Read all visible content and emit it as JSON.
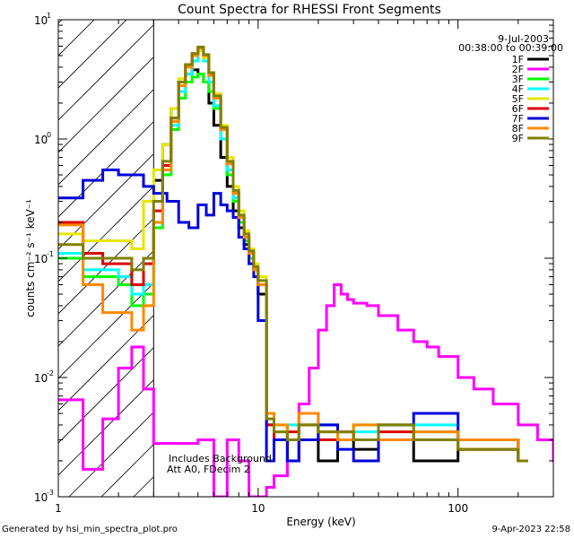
{
  "chart_data": {
    "type": "line",
    "title": "Count Spectra for RHESSI Front Segments",
    "xlabel": "Energy (keV)",
    "ylabel": "counts cm⁻² s⁻¹ keV⁻¹",
    "xscale": "log",
    "yscale": "log",
    "xlim": [
      1,
      300
    ],
    "ylim": [
      0.001,
      10
    ],
    "xticks": [
      {
        "v": 1,
        "label": "1"
      },
      {
        "v": 10,
        "label": "10"
      },
      {
        "v": 100,
        "label": "100"
      }
    ],
    "yticks": [
      {
        "v": 0.001,
        "label": "10",
        "exp": "-3"
      },
      {
        "v": 0.01,
        "label": "10",
        "exp": "-2"
      },
      {
        "v": 0.1,
        "label": "10",
        "exp": "-1"
      },
      {
        "v": 1,
        "label": "10",
        "exp": "0"
      },
      {
        "v": 10,
        "label": "10",
        "exp": "1"
      }
    ],
    "date": "9-Jul-2003",
    "time_range": "00:38:00 to 00:39:00",
    "annotations": [
      "Includes Background",
      "Att A0, FDecim 2"
    ],
    "hatched_below_keV": 3,
    "series": [
      {
        "name": "1F",
        "color": "#000000",
        "x": [
          3,
          3.33,
          3.67,
          4,
          4.33,
          4.67,
          5,
          5.33,
          5.67,
          6,
          6.5,
          7,
          7.5,
          8,
          8.5,
          9,
          9.5,
          10,
          11,
          12,
          14,
          16,
          20,
          25,
          30,
          40,
          60,
          100,
          200
        ],
        "y": [
          0.45,
          0.9,
          1.8,
          3.0,
          3.5,
          3.8,
          3.5,
          3.0,
          2.0,
          1.3,
          0.7,
          0.4,
          0.25,
          0.18,
          0.13,
          0.1,
          0.08,
          0.05,
          0.004,
          0.003,
          0.002,
          0.003,
          0.002,
          0.003,
          0.0025,
          0.003,
          0.002,
          0.0025,
          0.002
        ]
      },
      {
        "name": "2F",
        "color": "#ff00ff",
        "x": [
          1,
          1.33,
          1.67,
          2,
          2.33,
          2.67,
          3,
          4,
          5,
          6,
          7,
          8,
          9,
          10,
          11,
          12,
          14,
          16,
          18,
          20,
          22,
          24,
          26,
          28,
          30,
          35,
          40,
          50,
          60,
          70,
          80,
          100,
          120,
          150,
          200,
          250,
          300
        ],
        "y": [
          0.0065,
          0.0017,
          0.0045,
          0.012,
          0.018,
          0.008,
          0.0028,
          0.0028,
          0.003,
          0.001,
          0.003,
          0.002,
          0.001,
          0.001,
          0.0012,
          0.0015,
          0.002,
          0.006,
          0.012,
          0.025,
          0.04,
          0.06,
          0.05,
          0.045,
          0.042,
          0.04,
          0.033,
          0.025,
          0.02,
          0.018,
          0.015,
          0.01,
          0.008,
          0.006,
          0.004,
          0.003,
          0.002
        ]
      },
      {
        "name": "3F",
        "color": "#00ff00",
        "x": [
          1,
          1.33,
          1.67,
          2,
          2.33,
          2.67,
          3,
          3.33,
          3.67,
          4,
          4.33,
          4.67,
          5,
          5.33,
          5.67,
          6,
          6.5,
          7,
          7.5,
          8,
          8.5,
          9,
          9.5,
          10,
          11,
          12,
          14,
          16,
          20,
          25,
          30,
          40,
          60,
          100,
          200
        ],
        "y": [
          0.1,
          0.07,
          0.07,
          0.06,
          0.04,
          0.05,
          0.18,
          0.5,
          1.2,
          2.2,
          3.0,
          3.3,
          3.5,
          3.0,
          2.5,
          1.8,
          1.0,
          0.5,
          0.3,
          0.2,
          0.14,
          0.1,
          0.08,
          0.06,
          0.005,
          0.004,
          0.003,
          0.005,
          0.004,
          0.003,
          0.004,
          0.003,
          0.0035,
          0.003,
          0.002
        ]
      },
      {
        "name": "4F",
        "color": "#00ffff",
        "x": [
          1,
          1.33,
          1.67,
          2,
          2.33,
          2.67,
          3,
          3.33,
          3.67,
          4,
          4.33,
          4.67,
          5,
          5.33,
          5.67,
          6,
          6.5,
          7,
          7.5,
          8,
          8.5,
          9,
          9.5,
          10,
          11,
          12,
          14,
          16,
          20,
          25,
          30,
          40,
          60,
          100,
          200
        ],
        "y": [
          0.11,
          0.08,
          0.08,
          0.07,
          0.05,
          0.06,
          0.2,
          0.55,
          1.3,
          2.5,
          3.5,
          4.5,
          5.5,
          4.5,
          3.0,
          1.9,
          1.0,
          0.55,
          0.32,
          0.22,
          0.15,
          0.11,
          0.08,
          0.06,
          0.004,
          0.003,
          0.004,
          0.003,
          0.004,
          0.003,
          0.0035,
          0.003,
          0.004,
          0.003,
          0.002
        ]
      },
      {
        "name": "5F",
        "color": "#e6e600",
        "x": [
          1,
          1.33,
          1.67,
          2,
          2.33,
          2.67,
          3,
          3.33,
          3.67,
          4,
          4.33,
          4.67,
          5,
          5.33,
          5.67,
          6,
          6.5,
          7,
          7.5,
          8,
          8.5,
          9,
          9.5,
          10,
          11,
          12,
          14,
          16,
          20,
          25,
          30,
          40,
          60,
          100,
          200
        ],
        "y": [
          0.16,
          0.14,
          0.14,
          0.14,
          0.12,
          0.3,
          0.55,
          0.9,
          1.8,
          3.2,
          4.2,
          5.0,
          5.5,
          4.8,
          3.6,
          2.4,
          1.3,
          0.7,
          0.4,
          0.25,
          0.17,
          0.12,
          0.09,
          0.07,
          0.004,
          0.0035,
          0.003,
          0.004,
          0.003,
          0.0035,
          0.003,
          0.004,
          0.003,
          0.0025,
          0.002
        ]
      },
      {
        "name": "6F",
        "color": "#dd0000",
        "x": [
          1,
          1.33,
          1.67,
          2,
          2.33,
          2.67,
          3,
          3.33,
          3.67,
          4,
          4.33,
          4.67,
          5,
          5.33,
          5.67,
          6,
          6.5,
          7,
          7.5,
          8,
          8.5,
          9,
          9.5,
          10,
          11,
          12,
          14,
          16,
          20,
          25,
          30,
          40,
          60,
          100,
          200
        ],
        "y": [
          0.2,
          0.11,
          0.09,
          0.09,
          0.06,
          0.09,
          0.25,
          0.6,
          1.5,
          3.0,
          4.2,
          5.2,
          5.8,
          5.0,
          3.5,
          2.2,
          1.2,
          0.62,
          0.35,
          0.22,
          0.15,
          0.11,
          0.08,
          0.06,
          0.004,
          0.003,
          0.0035,
          0.004,
          0.003,
          0.0035,
          0.003,
          0.0035,
          0.003,
          0.0025,
          0.002
        ]
      },
      {
        "name": "7F",
        "color": "#0000dd",
        "x": [
          1,
          1.33,
          1.67,
          2,
          2.33,
          2.67,
          3,
          3.5,
          4,
          4.5,
          5,
          5.5,
          6,
          6.5,
          7,
          7.5,
          8,
          8.5,
          9,
          9.5,
          10,
          11,
          12,
          14,
          16,
          20,
          25,
          30,
          40,
          60,
          100,
          200
        ],
        "y": [
          0.32,
          0.45,
          0.55,
          0.5,
          0.5,
          0.4,
          0.35,
          0.3,
          0.2,
          0.18,
          0.28,
          0.23,
          0.35,
          0.28,
          0.25,
          0.22,
          0.15,
          0.12,
          0.09,
          0.07,
          0.03,
          0.002,
          0.003,
          0.002,
          0.003,
          0.004,
          0.0025,
          0.002,
          0.004,
          0.005,
          0.003,
          0.002
        ]
      },
      {
        "name": "8F",
        "color": "#ff8800",
        "x": [
          1,
          1.33,
          1.67,
          2,
          2.33,
          2.67,
          3,
          3.33,
          3.67,
          4,
          4.33,
          4.67,
          5,
          5.33,
          5.67,
          6,
          6.5,
          7,
          7.5,
          8,
          8.5,
          9,
          9.5,
          10,
          11,
          12,
          14,
          16,
          20,
          25,
          30,
          40,
          60,
          100,
          200
        ],
        "y": [
          0.19,
          0.06,
          0.035,
          0.035,
          0.025,
          0.04,
          0.2,
          0.55,
          1.4,
          2.8,
          4.0,
          5.0,
          5.8,
          5.0,
          3.4,
          2.2,
          1.2,
          0.62,
          0.35,
          0.22,
          0.15,
          0.11,
          0.08,
          0.06,
          0.005,
          0.004,
          0.003,
          0.005,
          0.0035,
          0.003,
          0.004,
          0.003,
          0.0035,
          0.003,
          0.002
        ]
      },
      {
        "name": "9F",
        "color": "#808000",
        "x": [
          1,
          1.33,
          1.67,
          2,
          2.33,
          2.67,
          3,
          3.33,
          3.67,
          4,
          4.33,
          4.67,
          5,
          5.33,
          5.67,
          6,
          6.5,
          7,
          7.5,
          8,
          8.5,
          9,
          9.5,
          10,
          11,
          12,
          14,
          16,
          20,
          25,
          30,
          40,
          60,
          100,
          200
        ],
        "y": [
          0.13,
          0.1,
          0.1,
          0.1,
          0.08,
          0.1,
          0.3,
          0.65,
          1.5,
          3.0,
          4.2,
          5.2,
          5.9,
          5.1,
          3.6,
          2.3,
          1.25,
          0.65,
          0.37,
          0.23,
          0.16,
          0.115,
          0.085,
          0.065,
          0.0045,
          0.0035,
          0.003,
          0.004,
          0.0035,
          0.0035,
          0.003,
          0.004,
          0.003,
          0.0025,
          0.002
        ]
      }
    ]
  },
  "footer": {
    "left": "Generated by hsi_min_spectra_plot.pro",
    "right": "9-Apr-2023 22:58"
  }
}
